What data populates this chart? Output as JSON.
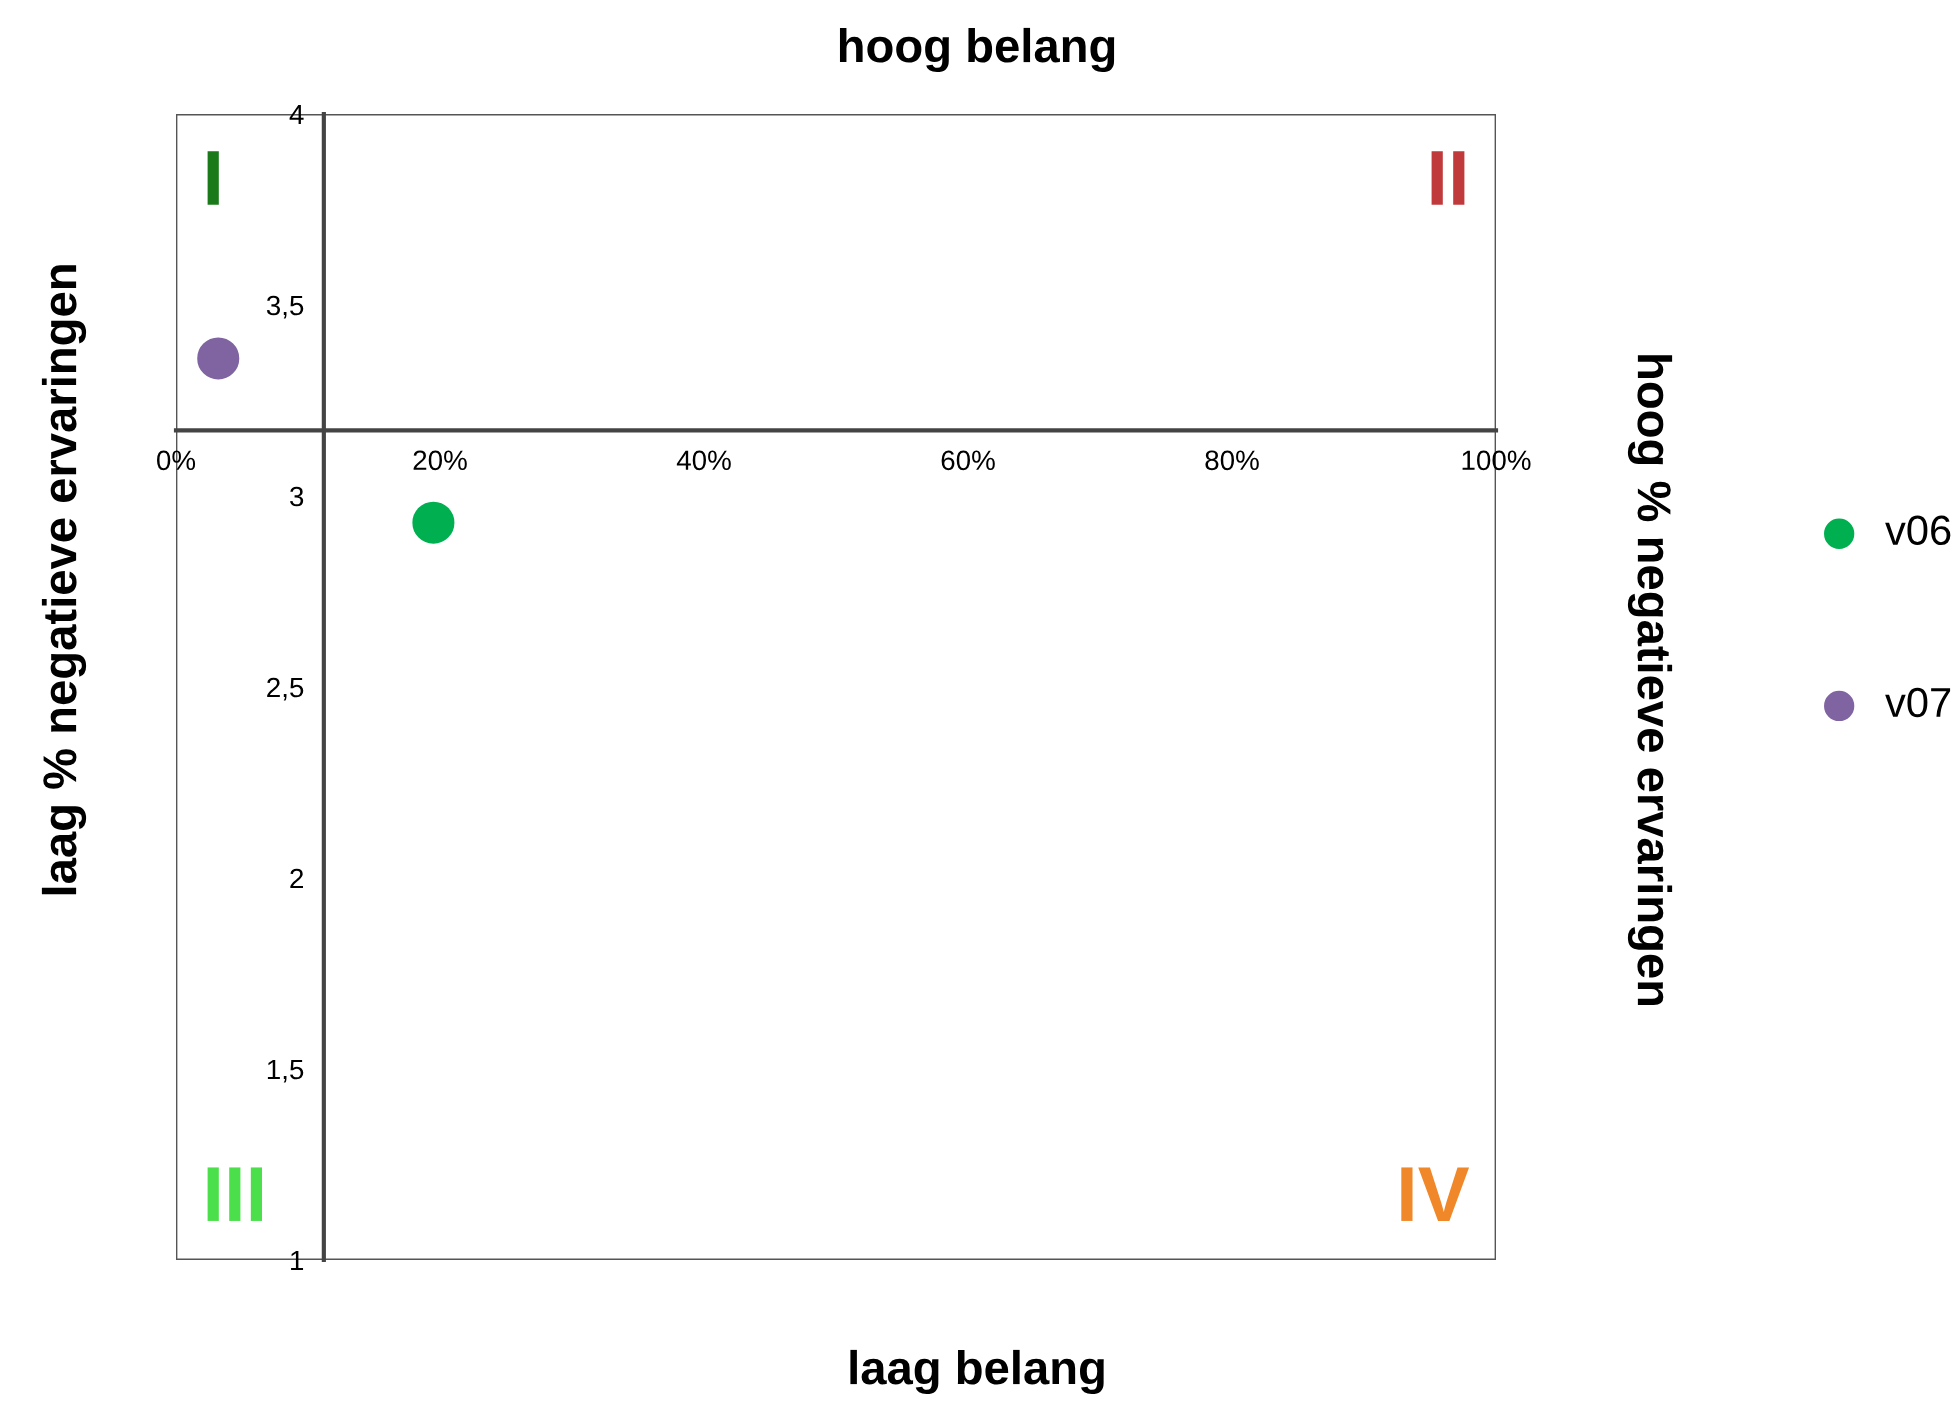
{
  "chart_data": {
    "type": "scatter",
    "title": "hoog belang",
    "xlabel": "laag belang",
    "ylabel": "laag % negatieve ervaringen",
    "y2label": "hoog % negatieve ervaringen",
    "series": [
      {
        "name": "v06",
        "color": "#00b050",
        "x": [
          19.5
        ],
        "values": [
          2.93
        ]
      },
      {
        "name": "v07",
        "color": "#8064a2",
        "x": [
          3.2
        ],
        "values": [
          3.36
        ]
      }
    ],
    "xlim": [
      0,
      100
    ],
    "ylim": [
      1,
      4
    ],
    "xticks": [
      {
        "value": 0,
        "label": "0%"
      },
      {
        "value": 20,
        "label": "20%"
      },
      {
        "value": 40,
        "label": "40%"
      },
      {
        "value": 60,
        "label": "60%"
      },
      {
        "value": 80,
        "label": "80%"
      },
      {
        "value": 100,
        "label": "100%"
      }
    ],
    "yticks": [
      1,
      {
        "value": 1.5,
        "label": "1,5"
      },
      2,
      {
        "value": 2.5,
        "label": "2,5"
      },
      3,
      {
        "value": 3.5,
        "label": "3,5"
      },
      4
    ],
    "annotations": [
      "I",
      "II",
      "III",
      "IV"
    ],
    "marker": "circle",
    "legend": "right",
    "grid": false
  }
}
